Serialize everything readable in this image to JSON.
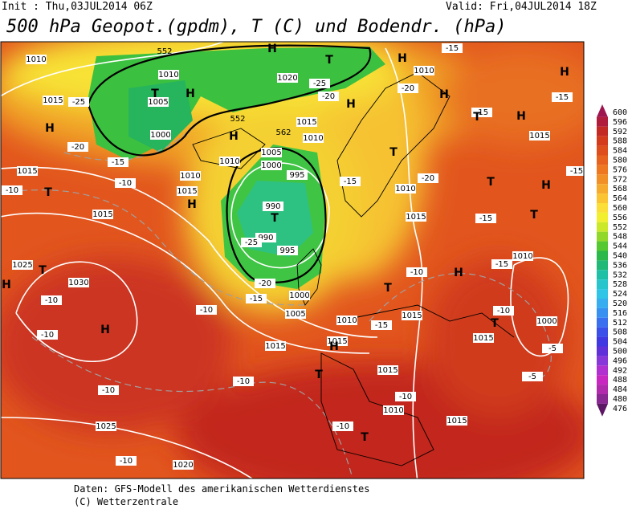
{
  "header": {
    "init": "Init : Thu,03JUL2014 06Z",
    "valid": "Valid: Fri,04JUL2014 18Z",
    "title": "500 hPa Geopot.(gpdm), T (C) und Bodendr. (hPa)"
  },
  "colorbar": {
    "ticks": [
      600,
      596,
      592,
      588,
      584,
      580,
      576,
      572,
      568,
      564,
      560,
      556,
      552,
      548,
      544,
      540,
      536,
      532,
      528,
      524,
      520,
      516,
      512,
      508,
      504,
      500,
      496,
      492,
      488,
      484,
      480,
      476
    ],
    "colors": [
      "#9e1650",
      "#b01c3c",
      "#c42a24",
      "#d43a1c",
      "#de4e1c",
      "#e6621e",
      "#ee7822",
      "#f29028",
      "#f6aa2e",
      "#fac432",
      "#fcde38",
      "#f2ee30",
      "#cce82a",
      "#92d82a",
      "#56c832",
      "#2cb84a",
      "#22b878",
      "#20c0a6",
      "#28c6cc",
      "#30c4e6",
      "#38aef0",
      "#3890f0",
      "#3a70f0",
      "#3a50e8",
      "#4038e0",
      "#6030d8",
      "#8838d8",
      "#b030d0",
      "#c828c0",
      "#b02cac",
      "#8a2894",
      "#5c1864"
    ]
  },
  "map": {
    "isobar_labels": [
      "1010",
      "1010",
      "1015",
      "1005",
      "1000",
      "1020",
      "1015",
      "1010",
      "1005",
      "1000",
      "995",
      "990",
      "990",
      "995",
      "1010",
      "1010",
      "1015",
      "1015",
      "1015",
      "1025",
      "1030",
      "1000",
      "1005",
      "1010",
      "1015",
      "1015",
      "1015",
      "1010",
      "1015",
      "1015",
      "1015",
      "1000",
      "1010",
      "1015",
      "1010",
      "1020",
      "1025",
      "1015",
      "1010",
      "1010"
    ],
    "temperature_labels": [
      "-25",
      "-20",
      "-15",
      "-10",
      "-10",
      "-25",
      "-20",
      "-15",
      "-10",
      "-10",
      "-10",
      "-10",
      "-10",
      "-10",
      "-10",
      "-10",
      "-15",
      "-10",
      "-15",
      "-10",
      "-5",
      "-5",
      "-20",
      "-15",
      "-15",
      "-20",
      "-25",
      "-15",
      "-15",
      "-15",
      "-15",
      "-20"
    ],
    "pressure_centers": [
      "H",
      "H",
      "H",
      "H",
      "H",
      "H",
      "H",
      "H",
      "H",
      "H",
      "H",
      "H",
      "H",
      "H",
      "H",
      "T",
      "T",
      "T",
      "T",
      "T",
      "T",
      "T",
      "T",
      "T",
      "T",
      "T",
      "T",
      "T"
    ],
    "height_labels": [
      "552",
      "552",
      "562"
    ]
  },
  "footer": {
    "source": "Daten: GFS-Modell des amerikanischen Wetterdienstes",
    "copyright": "(C) Wetterzentrale"
  }
}
